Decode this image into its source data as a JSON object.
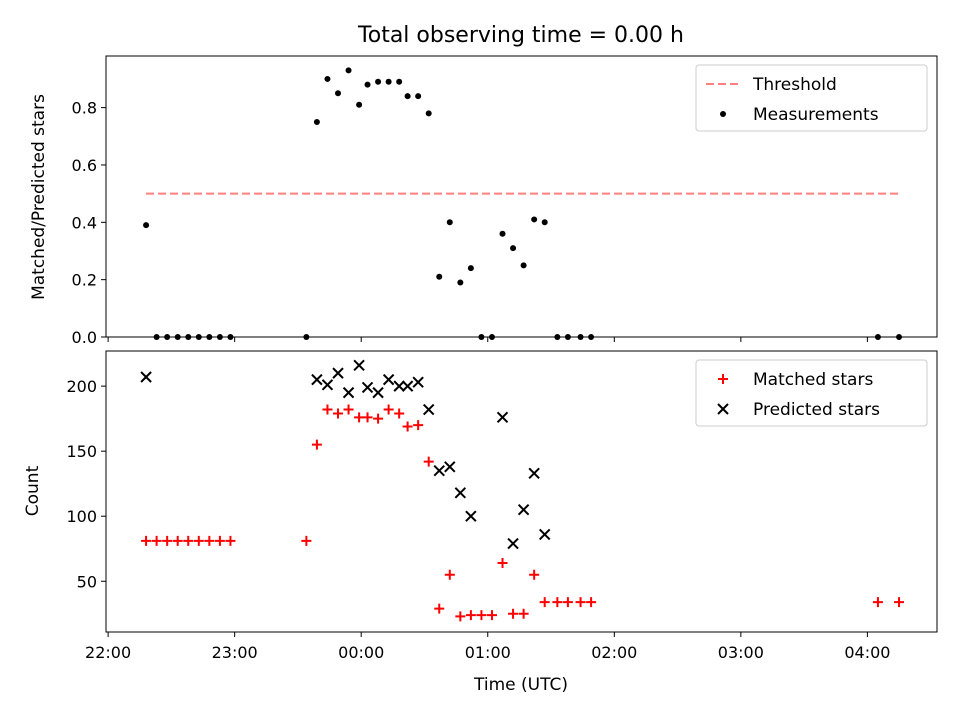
{
  "chart_data": [
    {
      "type": "scatter",
      "title": "Total observing time = 0.00 h",
      "xlabel": "",
      "ylabel": "Matched/Predicted stars",
      "xlim": [
        "21:59",
        "04:33"
      ],
      "ylim": [
        0,
        0.98
      ],
      "x_ticks": [
        "22:00",
        "23:00",
        "00:00",
        "01:00",
        "02:00",
        "03:00",
        "04:00"
      ],
      "x_tick_labels_shown": false,
      "y_ticks": [
        {
          "value": 0.0,
          "label": "0.0"
        },
        {
          "value": 0.2,
          "label": "0.2"
        },
        {
          "value": 0.4,
          "label": "0.4"
        },
        {
          "value": 0.6,
          "label": "0.6"
        },
        {
          "value": 0.8,
          "label": "0.8"
        }
      ],
      "legend_position": "top-right",
      "series": [
        {
          "name": "Threshold",
          "style": "dashed-line",
          "color": "#ff7f7f",
          "points": [
            {
              "x": "22:18",
              "y": 0.5
            },
            {
              "x": "04:15",
              "y": 0.5
            }
          ]
        },
        {
          "name": "Measurements",
          "style": "dot",
          "color": "#000000",
          "points": [
            {
              "x": "22:18",
              "y": 0.39
            },
            {
              "x": "22:23",
              "y": 0.0
            },
            {
              "x": "22:28",
              "y": 0.0
            },
            {
              "x": "22:33",
              "y": 0.0
            },
            {
              "x": "22:38",
              "y": 0.0
            },
            {
              "x": "22:43",
              "y": 0.0
            },
            {
              "x": "22:48",
              "y": 0.0
            },
            {
              "x": "22:53",
              "y": 0.0
            },
            {
              "x": "22:58",
              "y": 0.0
            },
            {
              "x": "23:34",
              "y": 0.0
            },
            {
              "x": "23:39",
              "y": 0.75
            },
            {
              "x": "23:44",
              "y": 0.9
            },
            {
              "x": "23:49",
              "y": 0.85
            },
            {
              "x": "23:54",
              "y": 0.93
            },
            {
              "x": "23:59",
              "y": 0.81
            },
            {
              "x": "00:03",
              "y": 0.88
            },
            {
              "x": "00:08",
              "y": 0.89
            },
            {
              "x": "00:13",
              "y": 0.89
            },
            {
              "x": "00:18",
              "y": 0.89
            },
            {
              "x": "00:22",
              "y": 0.84
            },
            {
              "x": "00:27",
              "y": 0.84
            },
            {
              "x": "00:32",
              "y": 0.78
            },
            {
              "x": "00:37",
              "y": 0.21
            },
            {
              "x": "00:42",
              "y": 0.4
            },
            {
              "x": "00:47",
              "y": 0.19
            },
            {
              "x": "00:52",
              "y": 0.24
            },
            {
              "x": "00:57",
              "y": 0.0
            },
            {
              "x": "01:02",
              "y": 0.0
            },
            {
              "x": "01:07",
              "y": 0.36
            },
            {
              "x": "01:12",
              "y": 0.31
            },
            {
              "x": "01:17",
              "y": 0.25
            },
            {
              "x": "01:22",
              "y": 0.41
            },
            {
              "x": "01:27",
              "y": 0.4
            },
            {
              "x": "01:33",
              "y": 0.0
            },
            {
              "x": "01:38",
              "y": 0.0
            },
            {
              "x": "01:44",
              "y": 0.0
            },
            {
              "x": "01:49",
              "y": 0.0
            },
            {
              "x": "04:05",
              "y": 0.0
            },
            {
              "x": "04:15",
              "y": 0.0
            }
          ]
        }
      ]
    },
    {
      "type": "scatter",
      "title": "",
      "xlabel": "Time (UTC)",
      "ylabel": "Count",
      "xlim": [
        "21:59",
        "04:33"
      ],
      "ylim": [
        11,
        227
      ],
      "x_ticks": [
        "22:00",
        "23:00",
        "00:00",
        "01:00",
        "02:00",
        "03:00",
        "04:00"
      ],
      "x_tick_labels_shown": true,
      "y_ticks": [
        {
          "value": 50,
          "label": "50"
        },
        {
          "value": 100,
          "label": "100"
        },
        {
          "value": 150,
          "label": "150"
        },
        {
          "value": 200,
          "label": "200"
        }
      ],
      "legend_position": "top-right",
      "series": [
        {
          "name": "Matched stars",
          "style": "plus",
          "color": "#ff0000",
          "points": [
            {
              "x": "22:18",
              "y": 81
            },
            {
              "x": "22:23",
              "y": 81
            },
            {
              "x": "22:28",
              "y": 81
            },
            {
              "x": "22:33",
              "y": 81
            },
            {
              "x": "22:38",
              "y": 81
            },
            {
              "x": "22:43",
              "y": 81
            },
            {
              "x": "22:48",
              "y": 81
            },
            {
              "x": "22:53",
              "y": 81
            },
            {
              "x": "22:58",
              "y": 81
            },
            {
              "x": "23:34",
              "y": 81
            },
            {
              "x": "23:39",
              "y": 155
            },
            {
              "x": "23:44",
              "y": 182
            },
            {
              "x": "23:49",
              "y": 179
            },
            {
              "x": "23:54",
              "y": 182
            },
            {
              "x": "23:59",
              "y": 176
            },
            {
              "x": "00:03",
              "y": 176
            },
            {
              "x": "00:08",
              "y": 175
            },
            {
              "x": "00:13",
              "y": 182
            },
            {
              "x": "00:18",
              "y": 179
            },
            {
              "x": "00:22",
              "y": 169
            },
            {
              "x": "00:27",
              "y": 170
            },
            {
              "x": "00:32",
              "y": 142
            },
            {
              "x": "00:37",
              "y": 29
            },
            {
              "x": "00:42",
              "y": 55
            },
            {
              "x": "00:47",
              "y": 23
            },
            {
              "x": "00:52",
              "y": 24
            },
            {
              "x": "00:57",
              "y": 24
            },
            {
              "x": "01:02",
              "y": 24
            },
            {
              "x": "01:07",
              "y": 64
            },
            {
              "x": "01:12",
              "y": 25
            },
            {
              "x": "01:17",
              "y": 25
            },
            {
              "x": "01:22",
              "y": 55
            },
            {
              "x": "01:27",
              "y": 34
            },
            {
              "x": "01:33",
              "y": 34
            },
            {
              "x": "01:38",
              "y": 34
            },
            {
              "x": "01:44",
              "y": 34
            },
            {
              "x": "01:49",
              "y": 34
            },
            {
              "x": "04:05",
              "y": 34
            },
            {
              "x": "04:15",
              "y": 34
            }
          ]
        },
        {
          "name": "Predicted stars",
          "style": "x",
          "color": "#000000",
          "points": [
            {
              "x": "22:18",
              "y": 207
            },
            {
              "x": "23:39",
              "y": 205
            },
            {
              "x": "23:44",
              "y": 201
            },
            {
              "x": "23:49",
              "y": 210
            },
            {
              "x": "23:54",
              "y": 195
            },
            {
              "x": "23:59",
              "y": 216
            },
            {
              "x": "00:03",
              "y": 199
            },
            {
              "x": "00:08",
              "y": 195
            },
            {
              "x": "00:13",
              "y": 205
            },
            {
              "x": "00:18",
              "y": 200
            },
            {
              "x": "00:22",
              "y": 200
            },
            {
              "x": "00:27",
              "y": 203
            },
            {
              "x": "00:32",
              "y": 182
            },
            {
              "x": "00:37",
              "y": 135
            },
            {
              "x": "00:42",
              "y": 138
            },
            {
              "x": "00:47",
              "y": 118
            },
            {
              "x": "00:52",
              "y": 100
            },
            {
              "x": "01:07",
              "y": 176
            },
            {
              "x": "01:12",
              "y": 79
            },
            {
              "x": "01:17",
              "y": 105
            },
            {
              "x": "01:22",
              "y": 133
            },
            {
              "x": "01:27",
              "y": 86
            }
          ]
        }
      ]
    }
  ]
}
